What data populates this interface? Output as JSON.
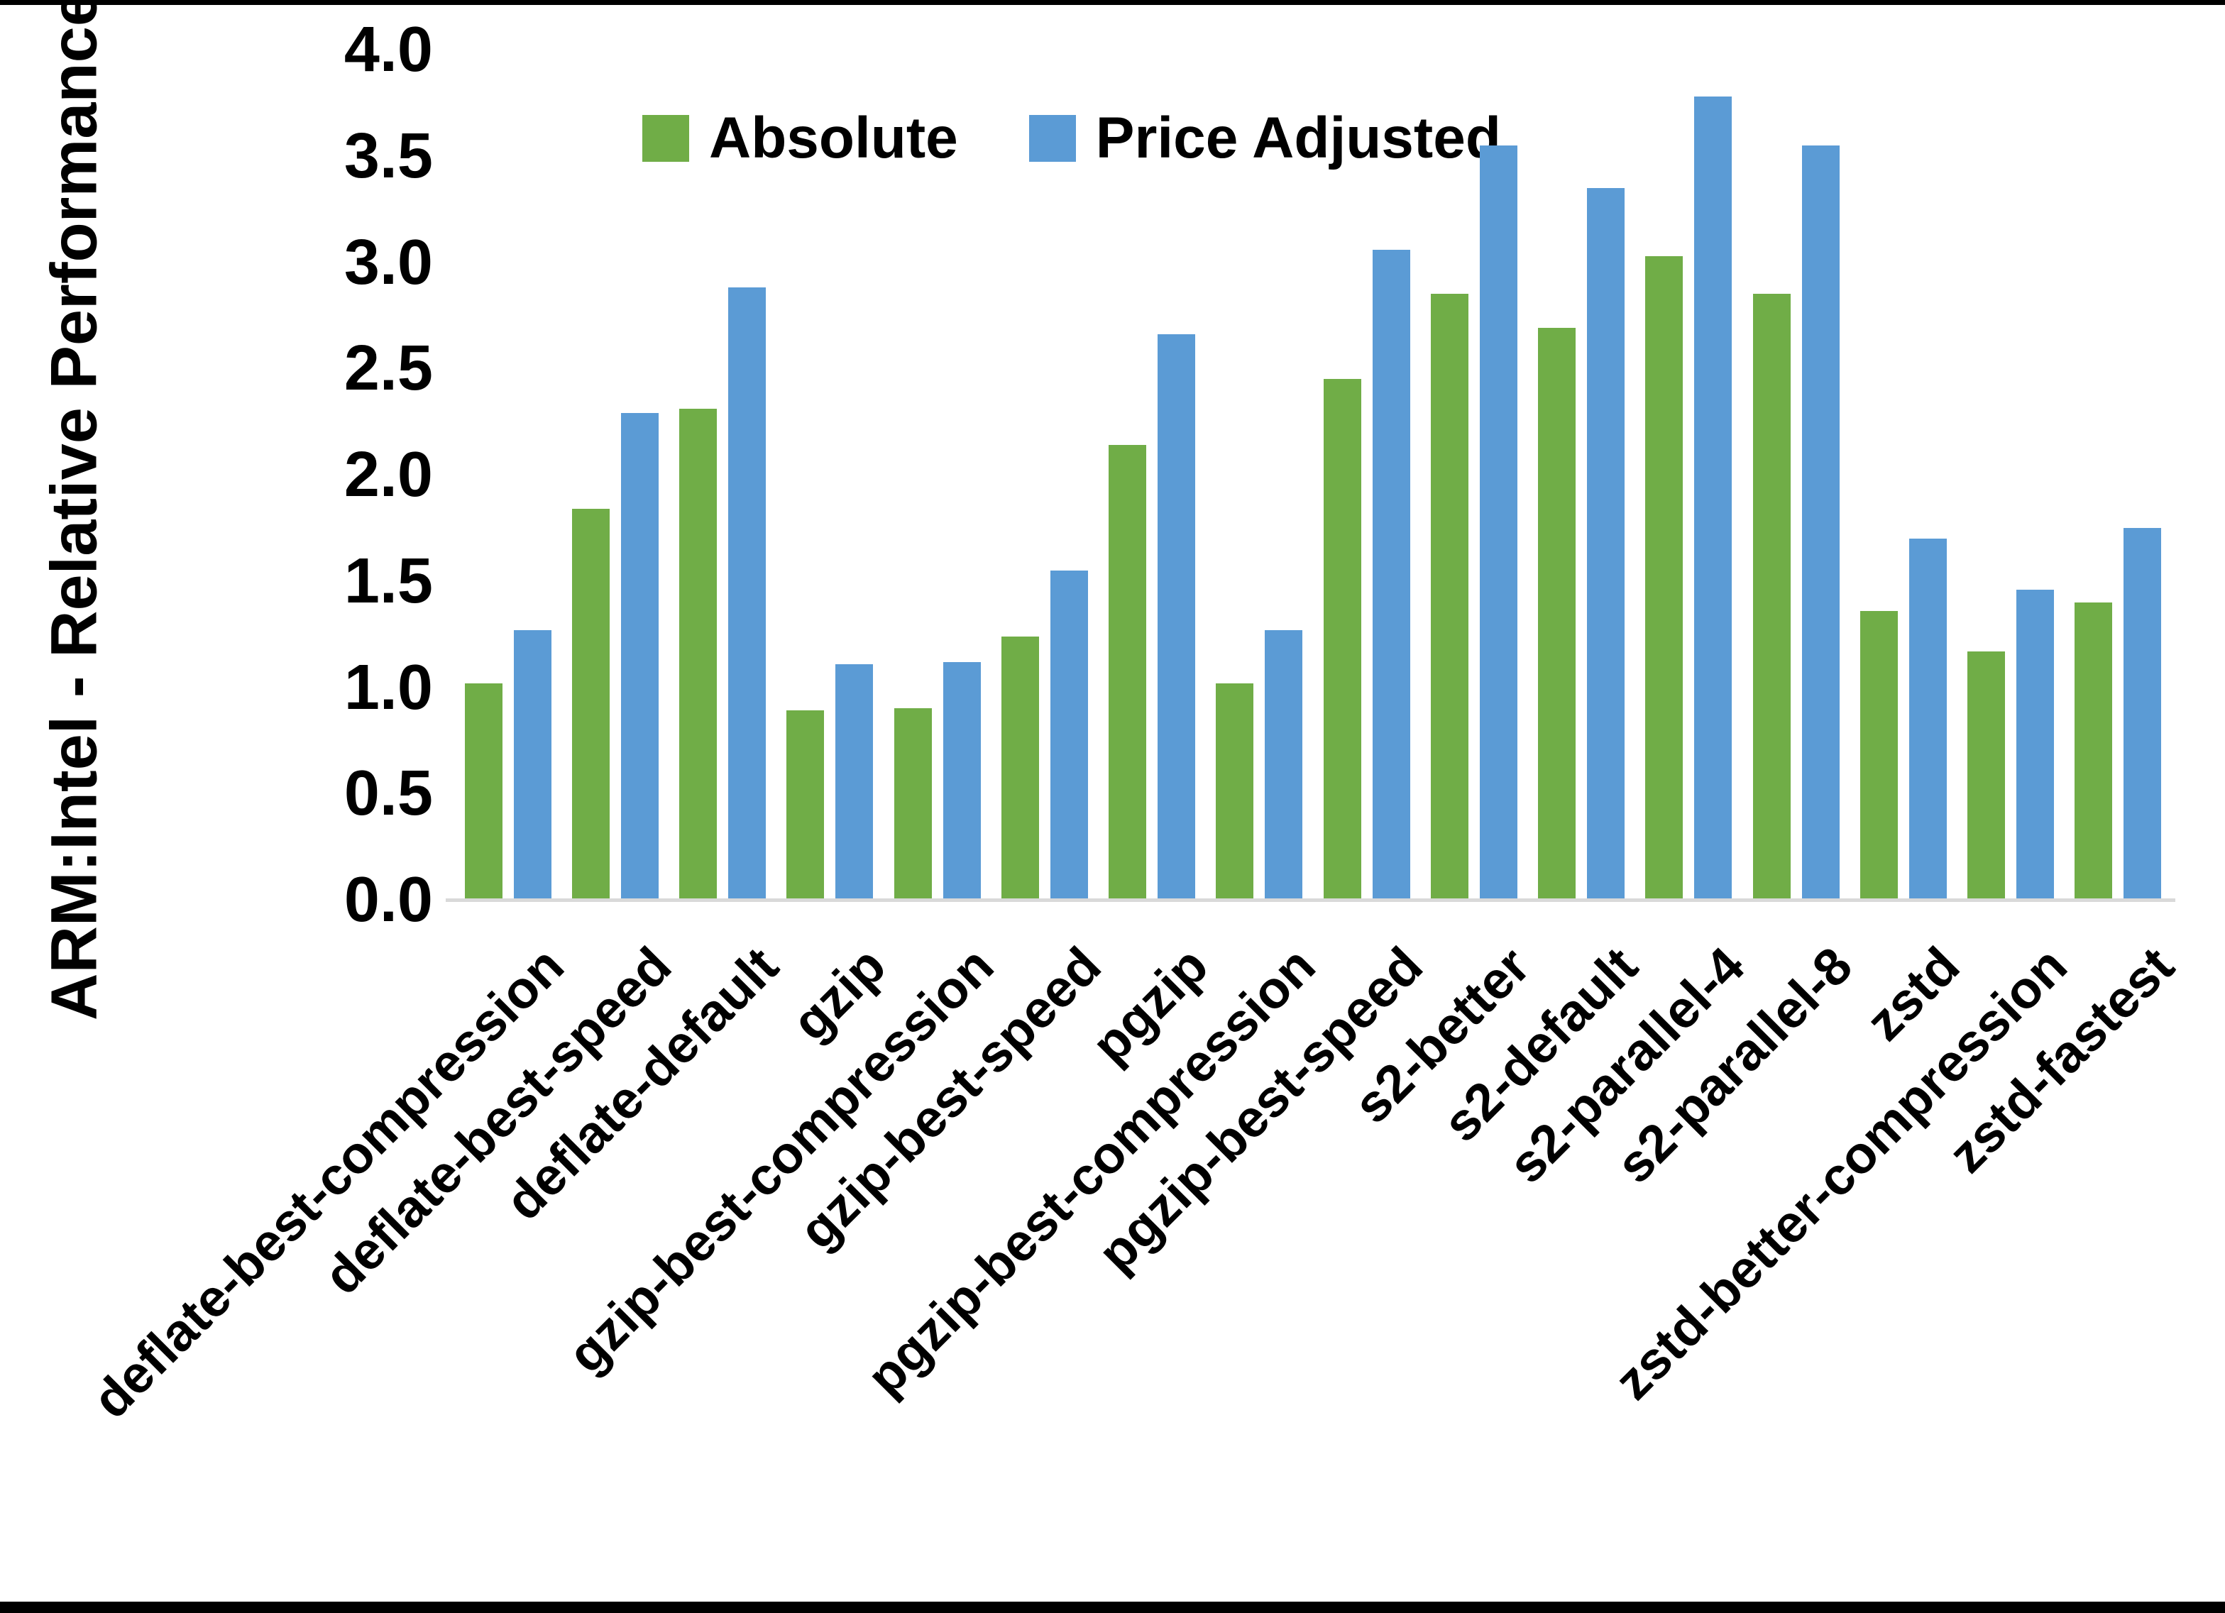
{
  "chart_data": {
    "type": "bar",
    "title": "",
    "xlabel": "",
    "ylabel": "ARM:Intel - Relative Performance",
    "ylim": [
      0.0,
      4.0
    ],
    "ytick_step": 0.5,
    "ytick_labels": [
      "4.0",
      "3.5",
      "3.0",
      "2.5",
      "2.0",
      "1.5",
      "1.0",
      "0.5",
      "0.0"
    ],
    "grid": false,
    "legend_position": "top-center",
    "categories": [
      "deflate-best-compression",
      "deflate-best-speed",
      "deflate-default",
      "gzip",
      "gzip-best-compression",
      "gzip-best-speed",
      "pgzip",
      "pgzip-best-compression",
      "pgzip-best-speed",
      "s2-better",
      "s2-default",
      "s2-parallel-4",
      "s2-parallel-8",
      "zstd",
      "zstd-better-compression",
      "zstd-fastest"
    ],
    "series": [
      {
        "name": "Absolute",
        "color": "#70AD47",
        "values": [
          1.02,
          1.84,
          2.31,
          0.89,
          0.9,
          1.24,
          2.14,
          1.02,
          2.45,
          2.85,
          2.69,
          3.03,
          2.85,
          1.36,
          1.17,
          1.4
        ]
      },
      {
        "name": "Price Adjusted",
        "color": "#5B9BD5",
        "values": [
          1.27,
          2.29,
          2.88,
          1.11,
          1.12,
          1.55,
          2.66,
          1.27,
          3.06,
          3.55,
          3.35,
          3.78,
          3.55,
          1.7,
          1.46,
          1.75
        ]
      }
    ]
  },
  "colors": {
    "axis_line": "#D9D9D9",
    "text": "#000000",
    "background": "#FFFFFF",
    "frame": "#000000"
  }
}
